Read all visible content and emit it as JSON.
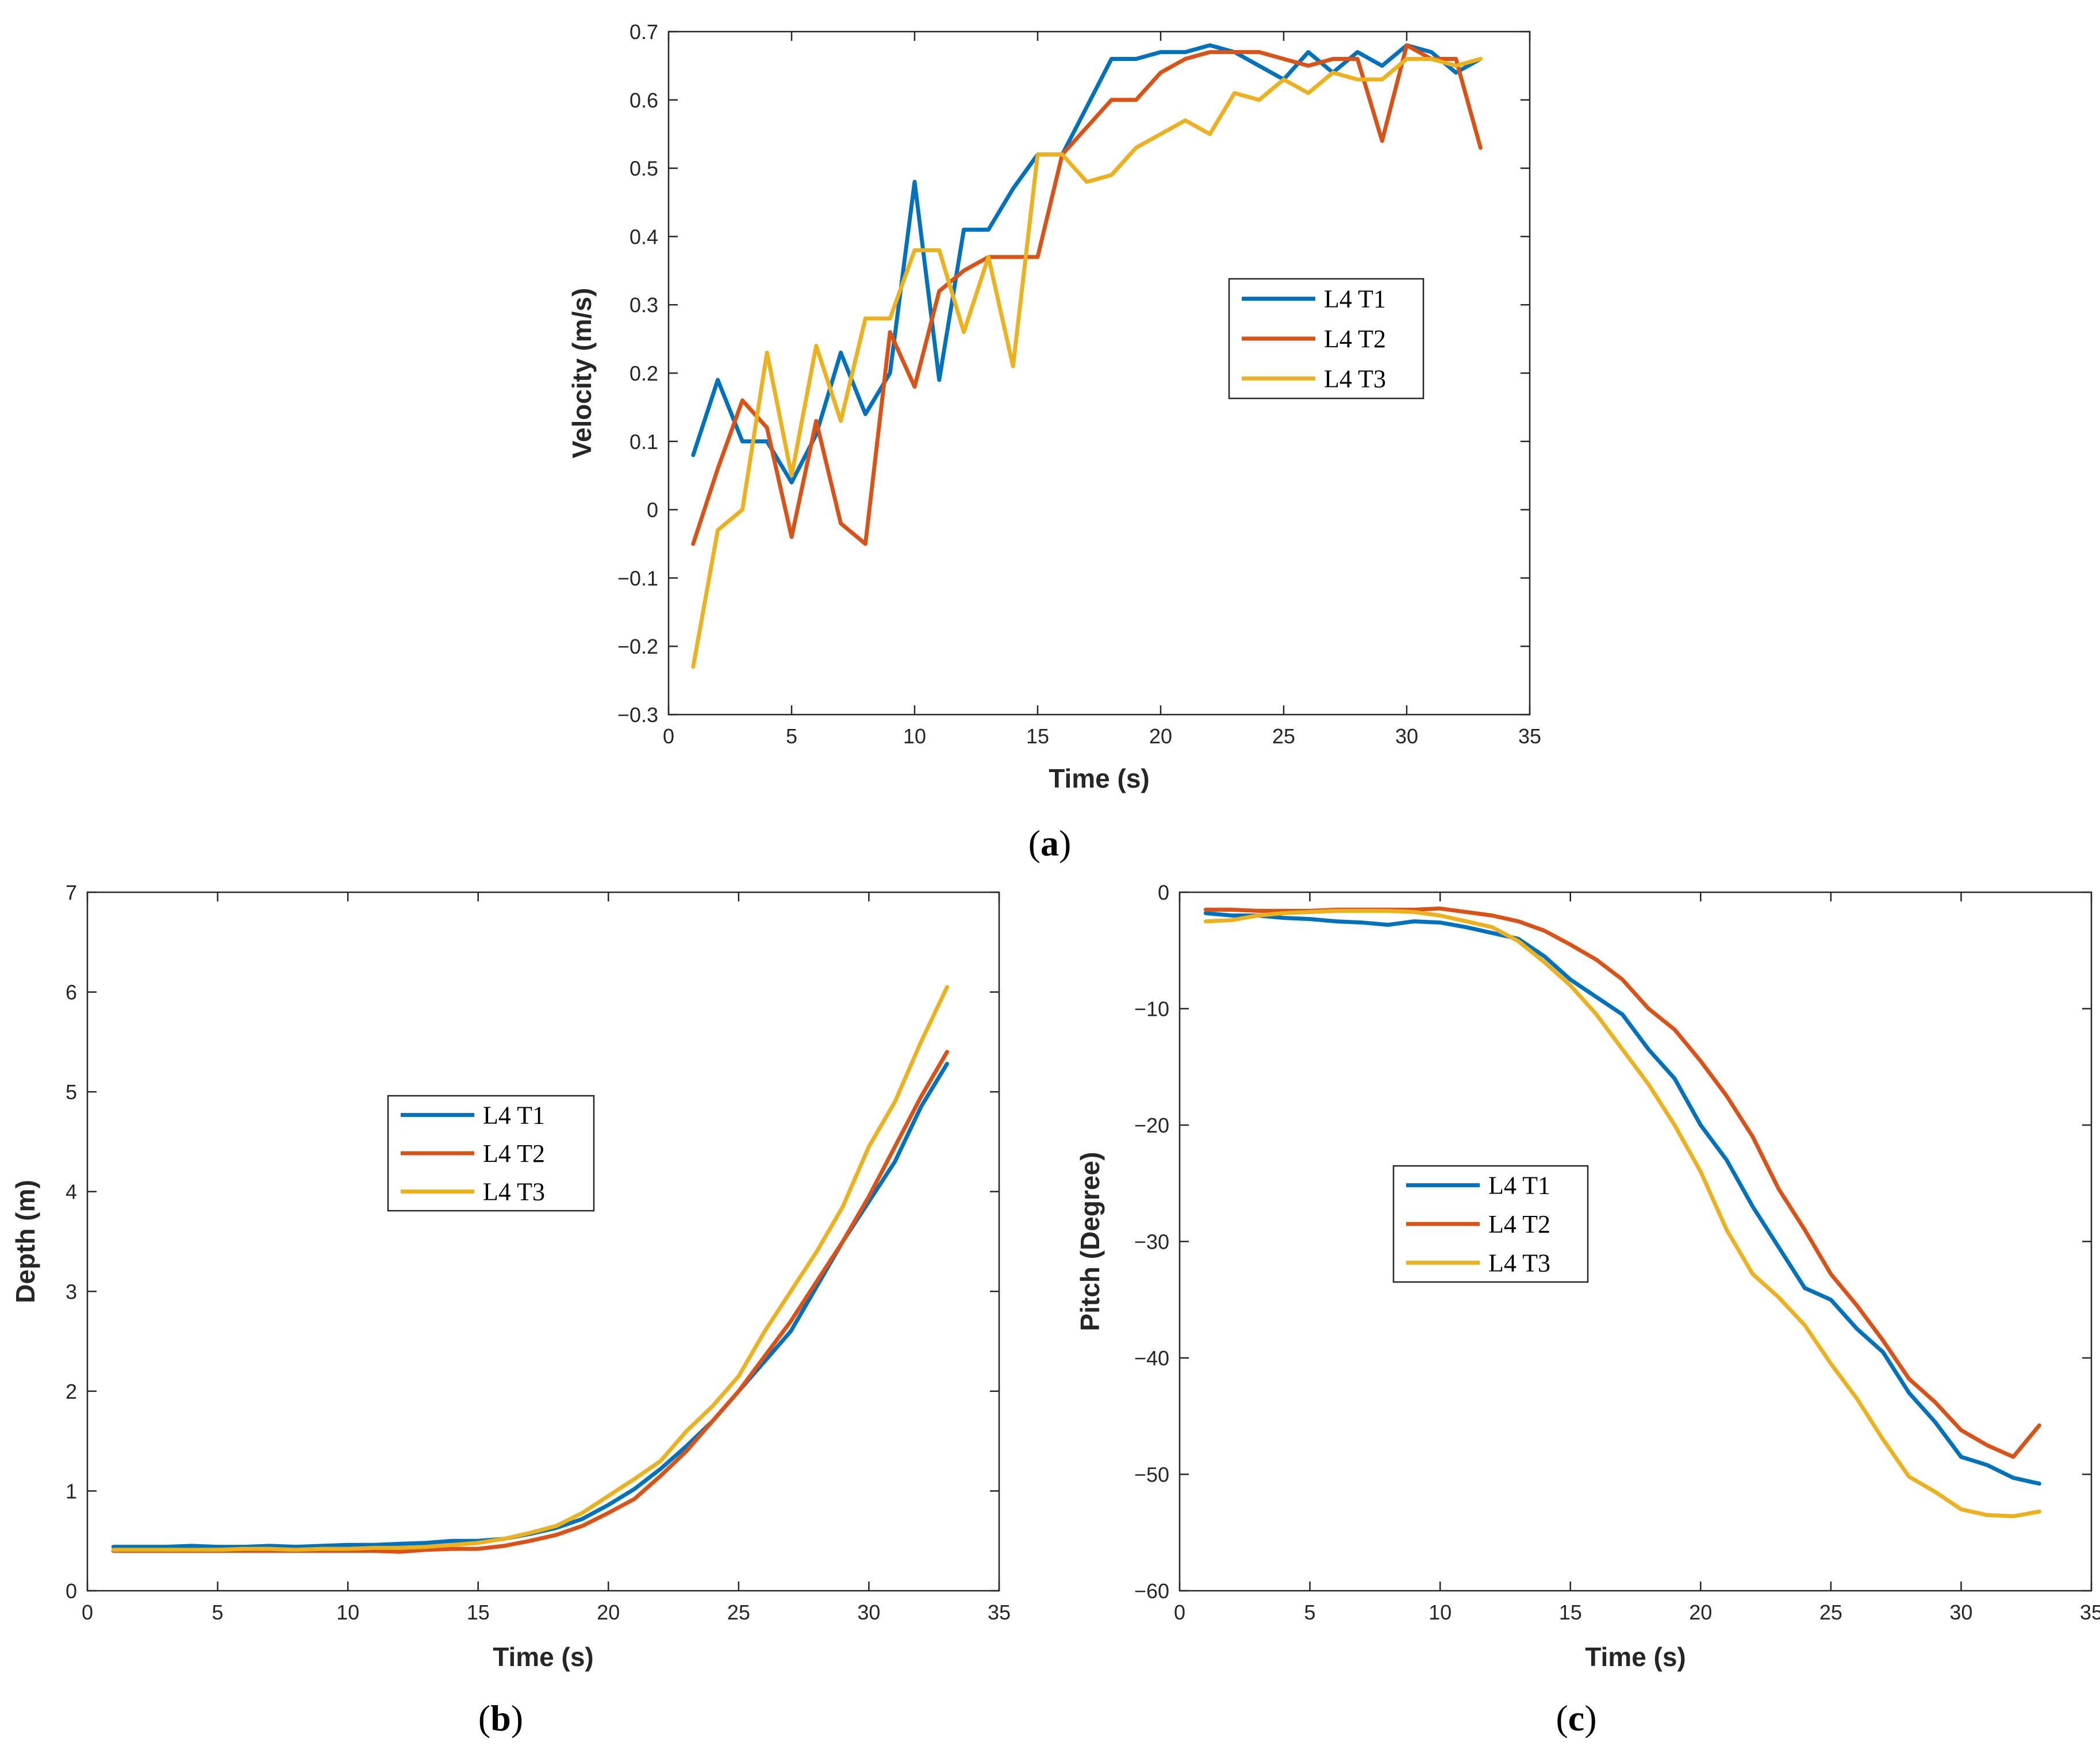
{
  "colors": {
    "t1": "#0072BD",
    "t2": "#D95319",
    "t3": "#EDB120",
    "axis": "#262626",
    "legend_border": "#262626"
  },
  "chart_data": [
    {
      "id": "a",
      "type": "line",
      "panel_label": "(a)",
      "panel_letter": "a",
      "xlabel": "Time (s)",
      "ylabel": "Velocity (m/s)",
      "xlim": [
        0,
        35
      ],
      "ylim": [
        -0.3,
        0.7
      ],
      "xticks": [
        0,
        5,
        10,
        15,
        20,
        25,
        30,
        35
      ],
      "yticks": [
        -0.3,
        -0.2,
        -0.1,
        0,
        0.1,
        0.2,
        0.3,
        0.4,
        0.5,
        0.6,
        0.7
      ],
      "ytick_labels": [
        "−0.3",
        "−0.2",
        "−0.1",
        "0",
        "0.1",
        "0.2",
        "0.3",
        "0.4",
        "0.5",
        "0.6",
        "0.7"
      ],
      "legend_position": "right-middle",
      "x": [
        1,
        2,
        3,
        4,
        5,
        6,
        7,
        8,
        9,
        10,
        11,
        12,
        13,
        14,
        15,
        16,
        17,
        18,
        19,
        20,
        21,
        22,
        23,
        24,
        25,
        26,
        27,
        28,
        29,
        30,
        31,
        32,
        33
      ],
      "series": [
        {
          "name": "L4 T1",
          "color_key": "t1",
          "values": [
            0.08,
            0.19,
            0.1,
            0.1,
            0.04,
            0.11,
            0.23,
            0.14,
            0.2,
            0.48,
            0.19,
            0.41,
            0.41,
            0.47,
            0.52,
            0.52,
            0.59,
            0.66,
            0.66,
            0.67,
            0.67,
            0.68,
            0.67,
            0.65,
            0.63,
            0.67,
            0.64,
            0.67,
            0.65,
            0.68,
            0.67,
            0.64,
            0.66
          ]
        },
        {
          "name": "L4 T2",
          "color_key": "t2",
          "values": [
            -0.05,
            0.06,
            0.16,
            0.12,
            -0.04,
            0.13,
            -0.02,
            -0.05,
            0.26,
            0.18,
            0.32,
            0.35,
            0.37,
            0.37,
            0.37,
            0.52,
            0.56,
            0.6,
            0.6,
            0.64,
            0.66,
            0.67,
            0.67,
            0.67,
            0.66,
            0.65,
            0.66,
            0.66,
            0.54,
            0.68,
            0.66,
            0.66,
            0.53
          ]
        },
        {
          "name": "L4 T3",
          "color_key": "t3",
          "values": [
            -0.23,
            -0.03,
            0.0,
            0.23,
            0.05,
            0.24,
            0.13,
            0.28,
            0.28,
            0.38,
            0.38,
            0.26,
            0.37,
            0.21,
            0.52,
            0.52,
            0.48,
            0.49,
            0.53,
            0.55,
            0.57,
            0.55,
            0.61,
            0.6,
            0.63,
            0.61,
            0.64,
            0.63,
            0.63,
            0.66,
            0.66,
            0.65,
            0.66
          ]
        }
      ]
    },
    {
      "id": "b",
      "type": "line",
      "panel_label": "(b)",
      "panel_letter": "b",
      "xlabel": "Time (s)",
      "ylabel": "Depth (m)",
      "xlim": [
        0,
        35
      ],
      "ylim": [
        0,
        7
      ],
      "xticks": [
        0,
        5,
        10,
        15,
        20,
        25,
        30,
        35
      ],
      "yticks": [
        0,
        1,
        2,
        3,
        4,
        5,
        6,
        7
      ],
      "ytick_labels": [
        "0",
        "1",
        "2",
        "3",
        "4",
        "5",
        "6",
        "7"
      ],
      "legend_position": "left-middle",
      "x": [
        1,
        2,
        3,
        4,
        5,
        6,
        7,
        8,
        9,
        10,
        11,
        12,
        13,
        14,
        15,
        16,
        17,
        18,
        19,
        20,
        21,
        22,
        23,
        24,
        25,
        26,
        27,
        28,
        29,
        30,
        31,
        32,
        33
      ],
      "series": [
        {
          "name": "L4 T1",
          "color_key": "t1",
          "values": [
            0.44,
            0.44,
            0.44,
            0.45,
            0.44,
            0.44,
            0.45,
            0.44,
            0.45,
            0.46,
            0.46,
            0.47,
            0.48,
            0.5,
            0.5,
            0.52,
            0.57,
            0.63,
            0.72,
            0.86,
            1.02,
            1.22,
            1.45,
            1.7,
            2.0,
            2.3,
            2.6,
            3.05,
            3.5,
            3.9,
            4.3,
            4.85,
            5.28
          ]
        },
        {
          "name": "L4 T2",
          "color_key": "t2",
          "values": [
            0.4,
            0.4,
            0.4,
            0.4,
            0.4,
            0.4,
            0.4,
            0.4,
            0.4,
            0.4,
            0.4,
            0.39,
            0.41,
            0.42,
            0.42,
            0.45,
            0.5,
            0.56,
            0.65,
            0.78,
            0.92,
            1.15,
            1.4,
            1.7,
            2.0,
            2.35,
            2.7,
            3.1,
            3.5,
            3.95,
            4.45,
            4.95,
            5.4
          ]
        },
        {
          "name": "L4 T3",
          "color_key": "t3",
          "values": [
            0.41,
            0.41,
            0.41,
            0.41,
            0.41,
            0.42,
            0.42,
            0.41,
            0.42,
            0.42,
            0.43,
            0.43,
            0.44,
            0.46,
            0.48,
            0.52,
            0.58,
            0.65,
            0.78,
            0.95,
            1.12,
            1.3,
            1.6,
            1.85,
            2.15,
            2.6,
            3.0,
            3.4,
            3.85,
            4.45,
            4.9,
            5.5,
            6.05
          ]
        }
      ]
    },
    {
      "id": "c",
      "type": "line",
      "panel_label": "(c)",
      "panel_letter": "c",
      "xlabel": "Time (s)",
      "ylabel": "Pitch (Degree)",
      "xlim": [
        0,
        35
      ],
      "ylim": [
        -60,
        0
      ],
      "xticks": [
        0,
        5,
        10,
        15,
        20,
        25,
        30,
        35
      ],
      "yticks": [
        -60,
        -50,
        -40,
        -30,
        -20,
        -10,
        0
      ],
      "ytick_labels": [
        "−60",
        "−50",
        "−40",
        "−30",
        "−20",
        "−10",
        "0"
      ],
      "legend_position": "left-middle",
      "x": [
        1,
        2,
        3,
        4,
        5,
        6,
        7,
        8,
        9,
        10,
        11,
        12,
        13,
        14,
        15,
        16,
        17,
        18,
        19,
        20,
        21,
        22,
        23,
        24,
        25,
        26,
        27,
        28,
        29,
        30,
        31,
        32,
        33
      ],
      "series": [
        {
          "name": "L4 T1",
          "color_key": "t1",
          "values": [
            -1.8,
            -2.0,
            -2.0,
            -2.2,
            -2.3,
            -2.5,
            -2.6,
            -2.8,
            -2.5,
            -2.6,
            -3.0,
            -3.5,
            -4.0,
            -5.5,
            -7.5,
            -9.0,
            -10.5,
            -13.5,
            -16.0,
            -20.0,
            -23.0,
            -27.0,
            -30.5,
            -34.0,
            -35.0,
            -37.5,
            -39.5,
            -43.0,
            -45.5,
            -48.5,
            -49.2,
            -50.3,
            -50.8
          ]
        },
        {
          "name": "L4 T2",
          "color_key": "t2",
          "values": [
            -1.5,
            -1.5,
            -1.6,
            -1.6,
            -1.6,
            -1.5,
            -1.5,
            -1.5,
            -1.5,
            -1.4,
            -1.7,
            -2.0,
            -2.5,
            -3.3,
            -4.5,
            -5.8,
            -7.5,
            -10.0,
            -11.8,
            -14.5,
            -17.5,
            -21.0,
            -25.5,
            -29.0,
            -32.8,
            -35.5,
            -38.5,
            -41.8,
            -43.8,
            -46.2,
            -47.5,
            -48.5,
            -45.8
          ]
        },
        {
          "name": "L4 T3",
          "color_key": "t3",
          "values": [
            -2.5,
            -2.4,
            -2.0,
            -1.8,
            -1.7,
            -1.6,
            -1.6,
            -1.6,
            -1.7,
            -2.0,
            -2.5,
            -3.0,
            -4.2,
            -6.0,
            -8.0,
            -10.5,
            -13.5,
            -16.5,
            -20.0,
            -24.0,
            -29.0,
            -32.8,
            -34.8,
            -37.2,
            -40.5,
            -43.5,
            -47.0,
            -50.2,
            -51.5,
            -53.0,
            -53.5,
            -53.6,
            -53.2
          ]
        }
      ]
    }
  ]
}
